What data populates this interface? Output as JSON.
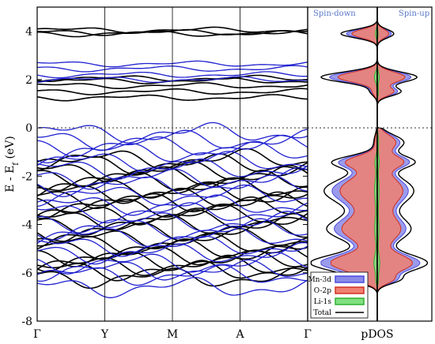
{
  "chart_data": [
    {
      "type": "line",
      "ylabel": "E - E",
      "ylabel_sub": "f",
      "ylabel_unit": " (eV)",
      "ylim": [
        -8,
        5
      ],
      "yticks": [
        4,
        2,
        0,
        -2,
        -4,
        -6,
        -8
      ],
      "kpoints": [
        "Γ",
        "Y",
        "M",
        "A",
        "Γ"
      ],
      "fermi_level": 0,
      "band_groups": [
        {
          "name": "spin-up",
          "color": "#000000",
          "energies": [
            4.05,
            3.95,
            3.9,
            2.05,
            1.95,
            1.75,
            1.5,
            1.25,
            -1.3,
            -1.5,
            -1.8,
            -2.0,
            -2.2,
            -2.5,
            -2.7,
            -2.9,
            -3.1,
            -3.3,
            -3.6,
            -3.8,
            -4.0,
            -4.3,
            -4.6,
            -4.8,
            -5.0,
            -5.3,
            -5.5,
            -5.7,
            -5.9,
            -6.2
          ]
        },
        {
          "name": "spin-down",
          "color": "#2020d0",
          "energies": [
            2.65,
            2.45,
            2.2,
            2.0,
            -0.2,
            -0.5,
            -0.75,
            -1.0,
            -1.4,
            -1.7,
            -2.1,
            -2.4,
            -2.8,
            -3.2,
            -3.5,
            -3.9,
            -4.2,
            -4.5,
            -4.9,
            -5.2,
            -5.6,
            -5.9,
            -6.1,
            -6.6
          ]
        }
      ]
    },
    {
      "type": "area",
      "xlabel": "pDOS",
      "spin_down_label": "Spin-down",
      "spin_up_label": "Spin-up",
      "legend_position": "bottom-left",
      "series": [
        {
          "name": "Mn-3d",
          "color": "#4a4ae0",
          "fill": "#8a8ae8"
        },
        {
          "name": "O-2p",
          "color": "#d03020",
          "fill": "#f08070"
        },
        {
          "name": "Li-1s",
          "color": "#30b030",
          "fill": "#80e080"
        },
        {
          "name": "Total",
          "color": "#000000"
        }
      ],
      "peaks": [
        {
          "energy": 3.9,
          "up": 0.25,
          "down": 0.55,
          "width": 0.25
        },
        {
          "energy": 2.1,
          "up": 0.6,
          "down": 0.85,
          "width": 0.3
        },
        {
          "energy": 1.5,
          "up": 0.35,
          "down": 0.1,
          "width": 0.25
        },
        {
          "energy": -0.6,
          "up": 0.4,
          "down": 0.05,
          "width": 0.45
        },
        {
          "energy": -1.4,
          "up": 0.5,
          "down": 0.6,
          "width": 0.35
        },
        {
          "energy": -2.6,
          "up": 0.55,
          "down": 0.8,
          "width": 0.8
        },
        {
          "energy": -4.2,
          "up": 0.5,
          "down": 0.75,
          "width": 0.7
        },
        {
          "energy": -5.6,
          "up": 0.75,
          "down": 1.0,
          "width": 0.5
        },
        {
          "energy": -6.3,
          "up": 0.25,
          "down": 0.3,
          "width": 0.25
        }
      ]
    }
  ]
}
